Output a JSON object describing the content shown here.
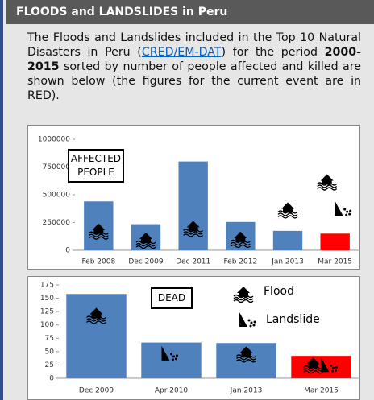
{
  "header": {
    "title": "FLOODS  and LANDSLIDES in Peru"
  },
  "intro": {
    "text1": "The Floods and Landslides included in the Top 10 Natural Disasters in Peru (",
    "link": "CRED/EM-DAT",
    "text2": ") for the period ",
    "bold": "2000-2015",
    "text3": " sorted by number of people affected and killed are shown below (the figures for the current event are in RED)."
  },
  "chart_data": [
    {
      "type": "bar",
      "annotation": "AFFECTED PEOPLE",
      "categories": [
        "Feb 2008",
        "Dec 2009",
        "Dec 2011",
        "Feb 2012",
        "Jan 2013",
        "Mar 2015"
      ],
      "values": [
        440000,
        235000,
        800000,
        255000,
        175000,
        150000
      ],
      "colors": [
        "#4f81bd",
        "#4f81bd",
        "#4f81bd",
        "#4f81bd",
        "#4f81bd",
        "#ff0000"
      ],
      "ylim": [
        0,
        1000000
      ],
      "yticks": [
        0,
        250000,
        500000,
        750000,
        1000000
      ]
    },
    {
      "type": "bar",
      "annotation": "DEAD",
      "legend": [
        {
          "name": "Flood"
        },
        {
          "name": "Landslide"
        }
      ],
      "categories": [
        "Dec 2009",
        "Apr 2010",
        "Jan 2013",
        "Mar 2015"
      ],
      "values": [
        158,
        67,
        66,
        42
      ],
      "colors": [
        "#4f81bd",
        "#4f81bd",
        "#4f81bd",
        "#ff0000"
      ],
      "ylim": [
        0,
        175
      ],
      "yticks": [
        0,
        25,
        50,
        75,
        100,
        125,
        150,
        175
      ]
    }
  ]
}
